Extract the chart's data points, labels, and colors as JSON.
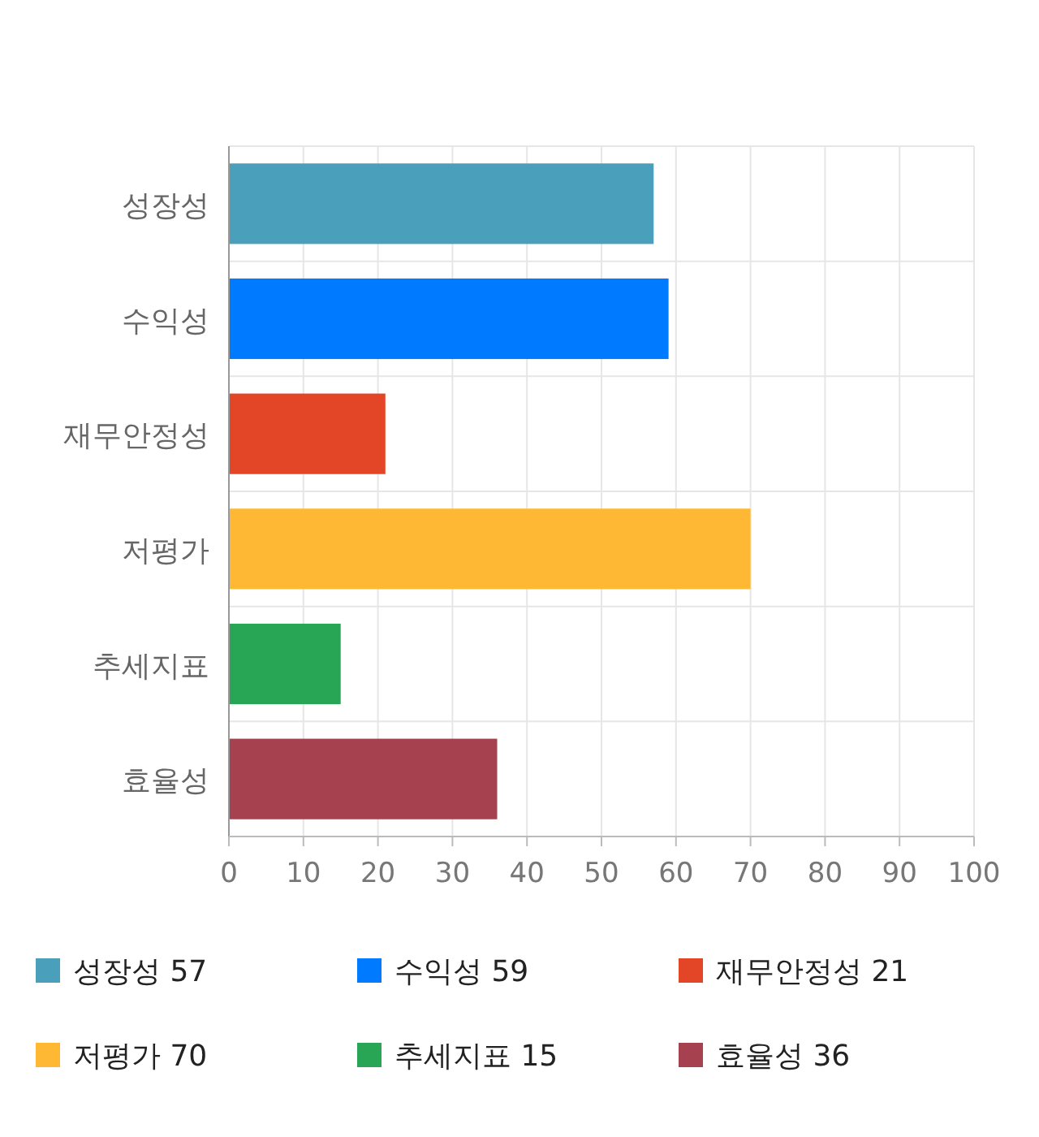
{
  "chart_data": {
    "type": "bar",
    "orientation": "horizontal",
    "categories": [
      "성장성",
      "수익성",
      "재무안정성",
      "저평가",
      "추세지표",
      "효율성"
    ],
    "series": [
      {
        "name": "성장성 57",
        "color": "#4aa0bb",
        "values": [
          57,
          null,
          null,
          null,
          null,
          null
        ]
      },
      {
        "name": "수익성 59",
        "color": "#007bff",
        "values": [
          null,
          59,
          null,
          null,
          null,
          null
        ]
      },
      {
        "name": "재무안정성 21",
        "color": "#e24626",
        "values": [
          null,
          null,
          21,
          null,
          null,
          null
        ]
      },
      {
        "name": "저평가 70",
        "color": "#ffb833",
        "values": [
          null,
          null,
          null,
          70,
          null,
          null
        ]
      },
      {
        "name": "추세지표 15",
        "color": "#28a655",
        "values": [
          null,
          null,
          null,
          null,
          15,
          null
        ]
      },
      {
        "name": "효율성 36",
        "color": "#a6414f",
        "values": [
          null,
          null,
          null,
          null,
          null,
          36
        ]
      }
    ],
    "xlim": [
      0,
      100
    ],
    "xticks": [
      0,
      10,
      20,
      30,
      40,
      50,
      60,
      70,
      80,
      90,
      100
    ],
    "grid": true,
    "legend": "bottom"
  }
}
